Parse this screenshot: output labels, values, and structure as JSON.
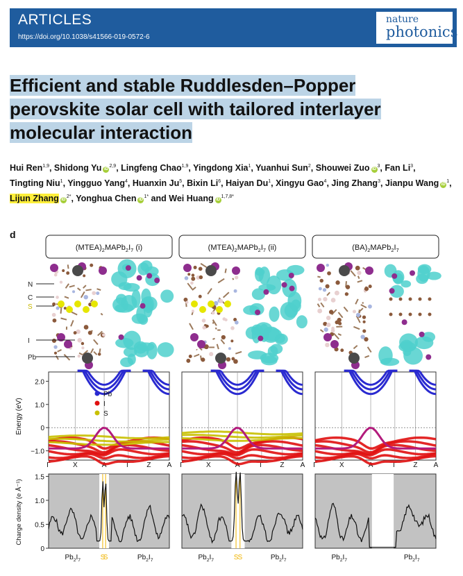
{
  "header": {
    "kicker": "ARTICLES",
    "doi": "https://doi.org/10.1038/s41566-019-0572-6",
    "journal_line1": "nature",
    "journal_line2": "photonics"
  },
  "title": "Efficient and stable Ruddlesden–Popper perovskite solar cell with tailored interlayer molecular interaction",
  "authors": [
    {
      "name": "Hui Ren",
      "sup": "1,9",
      "orcid": false,
      "highlight": false
    },
    {
      "name": "Shidong Yu",
      "sup": "2,9",
      "orcid": true,
      "highlight": false
    },
    {
      "name": "Lingfeng Chao",
      "sup": "1,9",
      "orcid": false,
      "highlight": false
    },
    {
      "name": "Yingdong Xia",
      "sup": "1",
      "orcid": false,
      "highlight": false
    },
    {
      "name": "Yuanhui Sun",
      "sup": "2",
      "orcid": false,
      "highlight": false
    },
    {
      "name": "Shouwei Zuo",
      "sup": "3",
      "orcid": true,
      "highlight": false
    },
    {
      "name": "Fan Li",
      "sup": "3",
      "orcid": false,
      "highlight": false
    },
    {
      "name": "Tingting Niu",
      "sup": "1",
      "orcid": false,
      "highlight": false
    },
    {
      "name": "Yingguo Yang",
      "sup": "4",
      "orcid": false,
      "highlight": false
    },
    {
      "name": "Huanxin Ju",
      "sup": "5",
      "orcid": false,
      "highlight": false
    },
    {
      "name": "Bixin Li",
      "sup": "6",
      "orcid": false,
      "highlight": false
    },
    {
      "name": "Haiyan Du",
      "sup": "1",
      "orcid": false,
      "highlight": false
    },
    {
      "name": "Xingyu Gao",
      "sup": "4",
      "orcid": false,
      "highlight": false
    },
    {
      "name": "Jing Zhang",
      "sup": "3",
      "orcid": false,
      "highlight": false
    },
    {
      "name": "Jianpu Wang",
      "sup": "1",
      "orcid": true,
      "highlight": false
    },
    {
      "name": "Lijun Zhang",
      "sup": "2*",
      "orcid": true,
      "highlight": true
    },
    {
      "name": "Yonghua Chen",
      "sup": "1*",
      "orcid": true,
      "highlight": false
    },
    {
      "name": "Wei Huang",
      "sup": "1,7,8*",
      "orcid": true,
      "highlight": false
    }
  ],
  "figure": {
    "panel_label": "d",
    "columns": [
      {
        "title_parts": [
          "(MTEA)",
          "2",
          "MAPb",
          "2",
          "I",
          "7",
          " (i)"
        ],
        "sulfur_window": [
          0.42,
          0.5
        ],
        "has_sulfur": true
      },
      {
        "title_parts": [
          "(MTEA)",
          "2",
          "MAPb",
          "2",
          "I",
          "7",
          " (ii)"
        ],
        "sulfur_window": [
          0.41,
          0.52
        ],
        "has_sulfur": true
      },
      {
        "title_parts": [
          "(BA)",
          "2",
          "MAPb",
          "2",
          "I",
          "7",
          ""
        ],
        "sulfur_window": [
          0.47,
          0.65
        ],
        "has_sulfur": false
      }
    ],
    "atom_labels": [
      "N",
      "C",
      "S",
      "I",
      "Pb"
    ],
    "band": {
      "ylabel": "Energy (eV)",
      "yticks": [
        "2.0",
        "1.0",
        "0",
        "−1.0"
      ],
      "ytick_values": [
        2.0,
        1.0,
        0,
        -1.0
      ],
      "ylim": [
        -1.4,
        2.4
      ],
      "kpoints": [
        "Γ",
        "X",
        "A",
        "Γ",
        "Z",
        "A"
      ],
      "legend": [
        {
          "label": "Pb",
          "color": "#2a2ad0"
        },
        {
          "label": "I",
          "color": "#e01010"
        },
        {
          "label": "S",
          "color": "#c8c000"
        }
      ]
    },
    "density": {
      "ylabel": "Charge density (e Å⁻¹)",
      "yticks": [
        "1.5",
        "1.0",
        "0.5",
        "0"
      ],
      "ytick_values": [
        1.5,
        1.0,
        0.5,
        0
      ],
      "ylim": [
        0,
        1.55
      ],
      "labels": [
        "Pb2I7",
        "S",
        "S",
        "Pb2I7"
      ]
    },
    "colors": {
      "isosurface": "#4fd0cc",
      "sulfur_line": "#f0b400",
      "shade": "#c2c2c2"
    }
  }
}
